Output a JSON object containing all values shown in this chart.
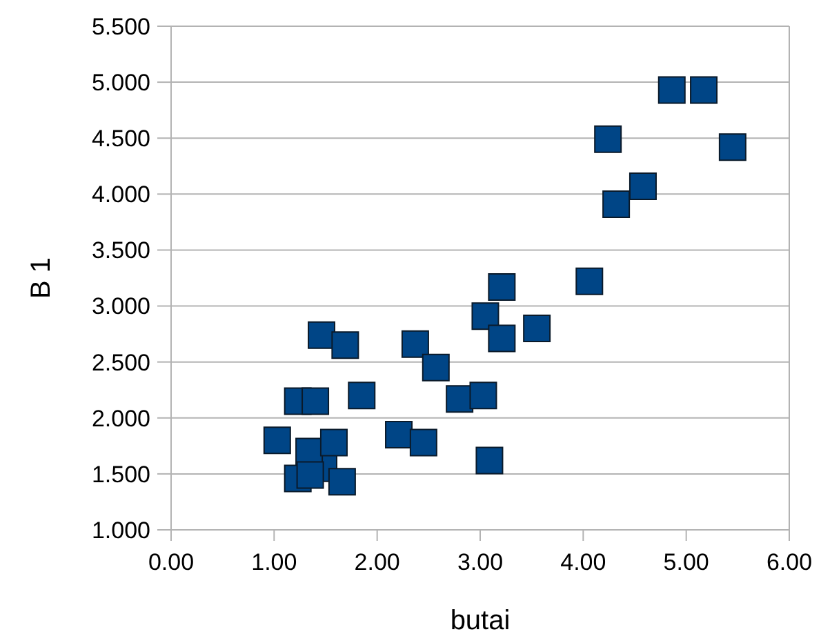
{
  "chart_data": {
    "type": "scatter",
    "xlabel": "butai",
    "ylabel": "B 1",
    "marker": "square",
    "grid": "y",
    "xlim": [
      0,
      6
    ],
    "xticks": [
      {
        "value": 0,
        "label": "0.00"
      },
      {
        "value": 1,
        "label": "1.00"
      },
      {
        "value": 2,
        "label": "2.00"
      },
      {
        "value": 3,
        "label": "3.00"
      },
      {
        "value": 4,
        "label": "4.00"
      },
      {
        "value": 5,
        "label": "5.00"
      },
      {
        "value": 6,
        "label": "6.00"
      }
    ],
    "ylim": [
      1,
      5.5
    ],
    "yticks": [
      {
        "value": 1,
        "label": "1.000"
      },
      {
        "value": 1.5,
        "label": "1.500"
      },
      {
        "value": 2,
        "label": "2.000"
      },
      {
        "value": 2.5,
        "label": "2.500"
      },
      {
        "value": 3,
        "label": "3.000"
      },
      {
        "value": 3.5,
        "label": "3.500"
      },
      {
        "value": 4,
        "label": "4.000"
      },
      {
        "value": 4.5,
        "label": "4.500"
      },
      {
        "value": 5,
        "label": "5.000"
      },
      {
        "value": 5.5,
        "label": "5.500"
      }
    ],
    "series": [
      {
        "color": "#004586",
        "x": [
          1.03,
          1.23,
          1.4,
          1.46,
          1.69,
          1.85,
          1.48,
          1.34,
          1.58,
          1.23,
          1.35,
          1.66,
          2.21,
          2.45,
          2.37,
          2.57,
          2.8,
          3.03,
          3.09,
          3.05,
          3.21,
          3.21,
          3.55,
          4.06,
          4.32,
          4.58,
          4.24,
          4.86,
          5.17,
          5.45
        ],
        "values": [
          1.8,
          2.15,
          2.15,
          2.74,
          2.65,
          2.2,
          1.55,
          1.7,
          1.78,
          1.46,
          1.49,
          1.43,
          1.85,
          1.78,
          2.66,
          2.45,
          2.17,
          2.2,
          1.62,
          2.91,
          3.17,
          2.71,
          2.8,
          3.22,
          3.91,
          4.07,
          4.49,
          4.93,
          4.93,
          4.42
        ]
      }
    ]
  }
}
